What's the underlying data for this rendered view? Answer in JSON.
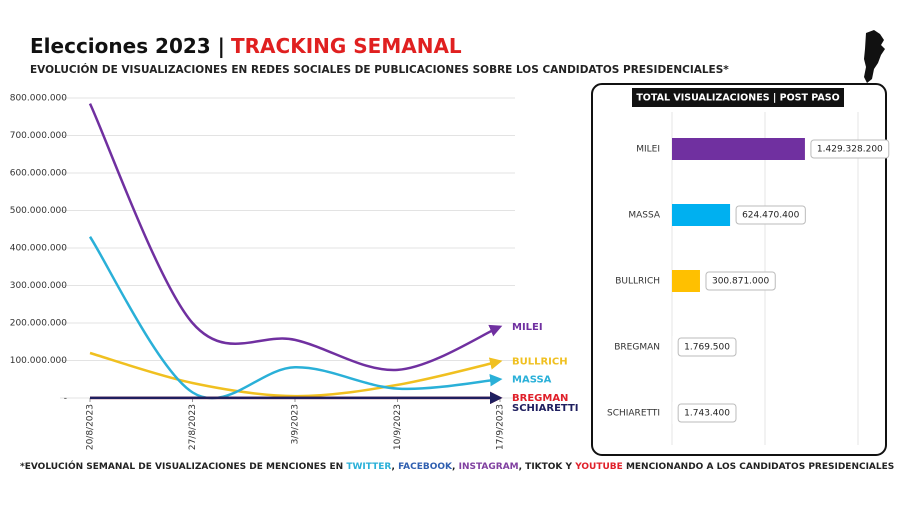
{
  "header": {
    "title": "Elecciones 2023 |",
    "title_highlight": "TRACKING SEMANAL",
    "subtitle": "EVOLUCIÓN DE VISUALIZACIONES EN REDES SOCIALES DE PUBLICACIONES SOBRE LOS CANDIDATOS PRESIDENCIALES*"
  },
  "chart_data": [
    {
      "type": "line",
      "categories": [
        "20/8/2023",
        "27/8/2023",
        "3/9/2023",
        "10/9/2023",
        "17/9/2023"
      ],
      "ylim": [
        0,
        800000000
      ],
      "yticks": [
        {
          "value": 0,
          "label": "-"
        },
        {
          "value": 100000000,
          "label": "100.000.000"
        },
        {
          "value": 200000000,
          "label": "200.000.000"
        },
        {
          "value": 300000000,
          "label": "300.000.000"
        },
        {
          "value": 400000000,
          "label": "400.000.000"
        },
        {
          "value": 500000000,
          "label": "500.000.000"
        },
        {
          "value": 600000000,
          "label": "600.000.000"
        },
        {
          "value": 700000000,
          "label": "700.000.000"
        },
        {
          "value": 800000000,
          "label": "800.000.000"
        }
      ],
      "grid": true,
      "series": [
        {
          "name": "MILEI",
          "color": "#7030a0",
          "values": [
            785000000,
            200000000,
            155000000,
            75000000,
            190000000
          ]
        },
        {
          "name": "BULLRICH",
          "color": "#f0c020",
          "values": [
            120000000,
            40000000,
            5000000,
            35000000,
            98000000
          ]
        },
        {
          "name": "MASSA",
          "color": "#2ab0d8",
          "values": [
            430000000,
            15000000,
            82000000,
            25000000,
            50000000
          ]
        },
        {
          "name": "BREGMAN",
          "color": "#e0202a",
          "values": [
            400000,
            400000,
            400000,
            400000,
            400000
          ]
        },
        {
          "name": "SCHIARETTI",
          "color": "#1f1f5f",
          "values": [
            400000,
            400000,
            400000,
            400000,
            400000
          ]
        }
      ]
    },
    {
      "type": "barh",
      "title": "TOTAL VISUALIZACIONES | POST PASO",
      "categories": [
        "MILEI",
        "MASSA",
        "BULLRICH",
        "BREGMAN",
        "SCHIARETTI"
      ],
      "values": [
        1429328200,
        624470400,
        300871000,
        1769500,
        1743400
      ],
      "value_labels": [
        "1.429.328.200",
        "624.470.400",
        "300.871.000",
        "1.769.500",
        "1.743.400"
      ],
      "colors": [
        "#7030a0",
        "#00b0f0",
        "#ffc000",
        "#ffffff",
        "#ffffff"
      ],
      "xlim": [
        0,
        2000000000
      ]
    }
  ],
  "footnote": [
    {
      "text": "*EVOLUCIÓN SEMANAL DE VISUALIZACIONES DE MENCIONES EN ",
      "color": "#222222"
    },
    {
      "text": "TWITTER",
      "color": "#2ab0d8"
    },
    {
      "text": ", ",
      "color": "#222222"
    },
    {
      "text": "FACEBOOK",
      "color": "#2f5fb0"
    },
    {
      "text": ", ",
      "color": "#222222"
    },
    {
      "text": "INSTAGRAM",
      "color": "#8040a0"
    },
    {
      "text": ", TIKTOK Y ",
      "color": "#222222"
    },
    {
      "text": "YOUTUBE",
      "color": "#e0202a"
    },
    {
      "text": " MENCIONANDO A LOS CANDIDATOS PRESIDENCIALES",
      "color": "#222222"
    }
  ]
}
